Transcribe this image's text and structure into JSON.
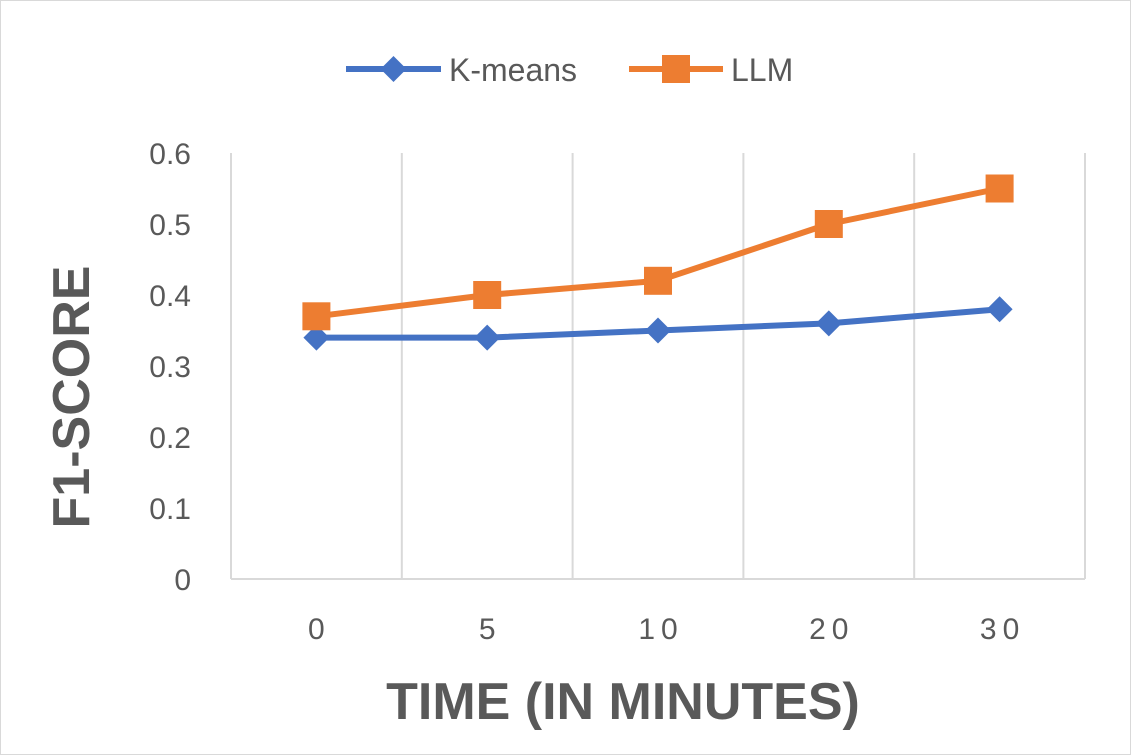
{
  "chart_data": {
    "type": "line",
    "title": "",
    "categories": [
      "0",
      "5",
      "10",
      "20",
      "30"
    ],
    "series": [
      {
        "name": "K-means",
        "values": [
          0.34,
          0.34,
          0.35,
          0.36,
          0.38
        ],
        "color": "#4472C4",
        "marker": "diamond"
      },
      {
        "name": "LLM",
        "values": [
          0.37,
          0.4,
          0.42,
          0.5,
          0.55
        ],
        "color": "#ED7D31",
        "marker": "square"
      }
    ],
    "xlabel": "TIME (IN MINUTES)",
    "ylabel": "F1-SCORE",
    "ylim": [
      0,
      0.6
    ],
    "yticks": [
      "0",
      "0.1",
      "0.2",
      "0.3",
      "0.4",
      "0.5",
      "0.6"
    ],
    "grid": "vertical",
    "legend_position": "top"
  }
}
